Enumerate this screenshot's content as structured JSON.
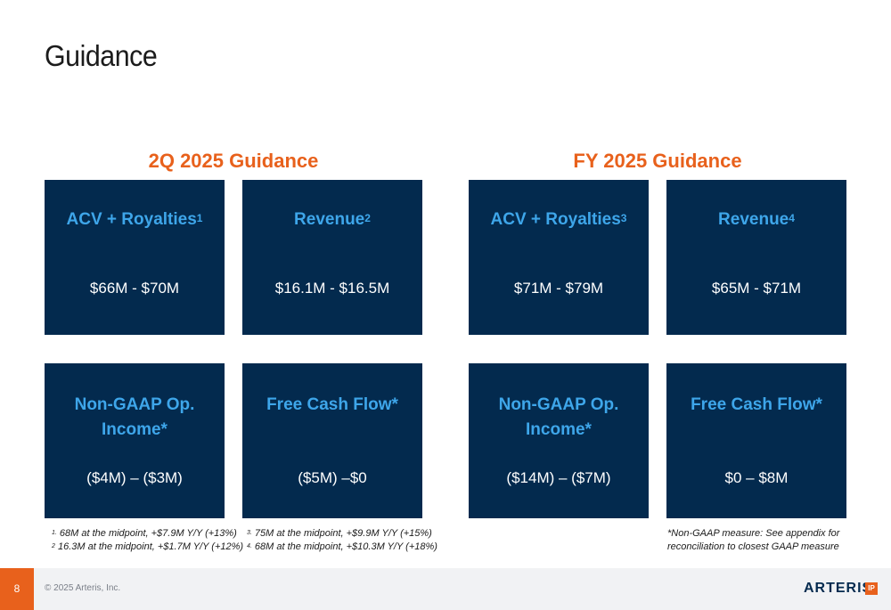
{
  "page_title": "Guidance",
  "sections": [
    {
      "title": "2Q 2025 Guidance"
    },
    {
      "title": "FY 2025 Guidance"
    }
  ],
  "cards": [
    {
      "label": "ACV + Royalties",
      "sup": "1",
      "value": "$66M - $70M"
    },
    {
      "label": "Revenue",
      "sup": "2",
      "value": "$16.1M - $16.5M"
    },
    {
      "label": "ACV + Royalties",
      "sup": "3",
      "value": "$71M - $79M"
    },
    {
      "label": "Revenue",
      "sup": "4",
      "value": "$65M - $71M"
    },
    {
      "label": "Non-GAAP Op. Income*",
      "value": "($4M) – ($3M)"
    },
    {
      "label": "Free Cash Flow*",
      "value": "($5M) –$0"
    },
    {
      "label": "Non-GAAP Op. Income*",
      "value": "($14M) – ($7M)"
    },
    {
      "label": "Free Cash Flow*",
      "value": "$0 – $8M"
    }
  ],
  "footnotes": {
    "n1": {
      "mark": "1.",
      "text": "68M at the midpoint, +$7.9M Y/Y (+13%)"
    },
    "n2": {
      "mark": "2",
      "text": "16.3M at the midpoint, +$1.7M Y/Y (+12%)"
    },
    "n3": {
      "mark": "3.",
      "text": "75M at the midpoint, +$9.9M Y/Y (+15%)"
    },
    "n4": {
      "mark": "4.",
      "text": "68M at the midpoint, +$10.3M Y/Y (+18%)"
    },
    "nongaap_line1": "*Non-GAAP measure: See appendix for",
    "nongaap_line2": "reconciliation to closest GAAP measure"
  },
  "footer": {
    "page_number": "8",
    "copyright": "© 2025 Arteris, Inc.",
    "logo_text": "ARTERIS",
    "logo_badge": "IP"
  },
  "colors": {
    "accent_orange": "#e8611c",
    "card_navy": "#032a4e",
    "card_label_blue": "#3ea6ea"
  }
}
